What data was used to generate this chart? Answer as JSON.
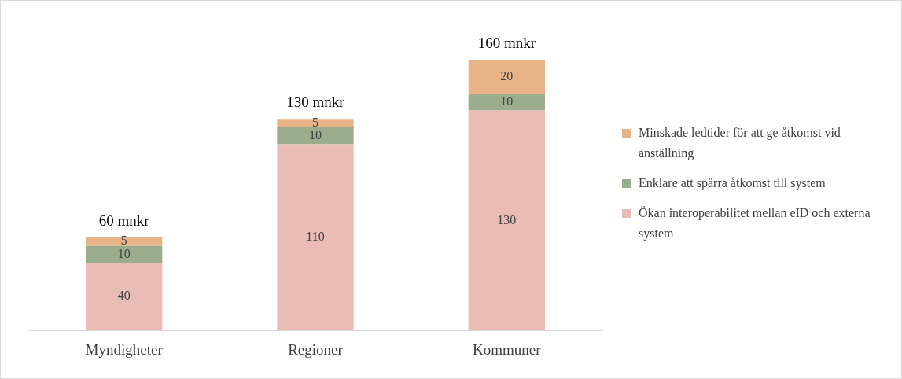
{
  "chart_data": {
    "type": "bar",
    "stacked": true,
    "categories": [
      "Myndigheter",
      "Regioner",
      "Kommuner"
    ],
    "series": [
      {
        "name": "Ökan interoperabilitet mellan eID och externa system",
        "color": "#eabcb6",
        "values": [
          40,
          110,
          130
        ]
      },
      {
        "name": "Enklare att spärra åtkomst till system",
        "color": "#9cad8e",
        "values": [
          10,
          10,
          10
        ]
      },
      {
        "name": "Minskade ledtider för att ge åtkomst vid anställning",
        "color": "#e8b387",
        "values": [
          5,
          5,
          20
        ]
      }
    ],
    "data_labels": true,
    "annotations": [
      {
        "text": "60 mnkr",
        "x": "Myndigheter",
        "y": 55
      },
      {
        "text": "130 mnkr",
        "x": "Regioner",
        "y": 125
      },
      {
        "text": "160 mnkr",
        "x": "Kommuner",
        "y": 160
      }
    ],
    "legend": "right",
    "grid": false
  }
}
